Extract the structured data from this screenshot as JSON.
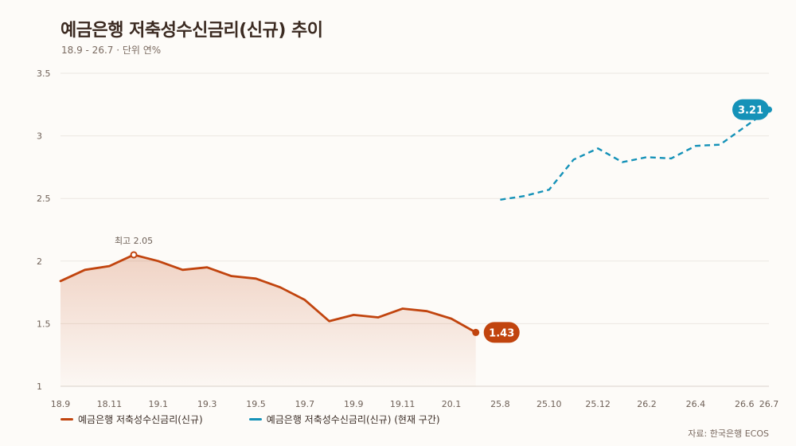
{
  "title": "예금은행 저축성수신금리(신규) 추이",
  "subtitle": "18.9 - 26.7 · 단위 연%",
  "source": "자료: 한국은행 ECOS",
  "colors": {
    "past": "#c1440e",
    "current": "#1592b8",
    "grid": "#ece7e2"
  },
  "chart_data": {
    "type": "line",
    "title": "예금은행 저축성수신금리(신규) 추이",
    "ylim": [
      1,
      3.5
    ],
    "yticks": [
      "1",
      "1.5",
      "2",
      "2.5",
      "3",
      "3.5"
    ],
    "xticks": [
      "18.9",
      "18.11",
      "19.1",
      "19.3",
      "19.5",
      "19.7",
      "19.9",
      "19.11",
      "20.1",
      "25.8",
      "25.10",
      "25.12",
      "26.2",
      "26.4",
      "26.6",
      "26.7"
    ],
    "series": [
      {
        "name": "예금은행 저축성수신금리(신규)",
        "values": [
          1.84,
          1.93,
          1.96,
          2.05,
          2.0,
          1.93,
          1.95,
          1.88,
          1.86,
          1.79,
          1.69,
          1.52,
          1.57,
          1.55,
          1.62,
          1.6,
          1.54,
          1.43
        ],
        "end_label": "1.43",
        "peak_label": "최고 2.05"
      },
      {
        "name": "예금은행 저축성수신금리(신규) (현재 구간)",
        "values": [
          2.49,
          2.52,
          2.57,
          2.81,
          2.9,
          2.79,
          2.83,
          2.82,
          2.92,
          2.93,
          3.07,
          3.21
        ],
        "end_label": "3.21"
      }
    ]
  }
}
